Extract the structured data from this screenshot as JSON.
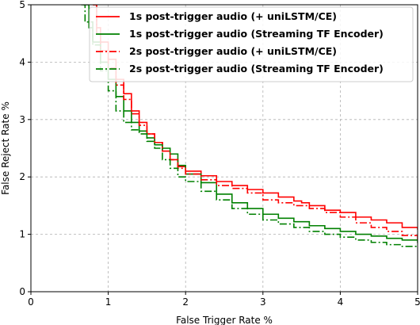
{
  "chart_data": {
    "type": "line",
    "title": "",
    "xlabel": "False Trigger Rate %",
    "ylabel": "False Reject Rate %",
    "xlim": [
      0,
      5
    ],
    "ylim": [
      0,
      5
    ],
    "xticks": [
      "0",
      "1",
      "2",
      "3",
      "4",
      "5"
    ],
    "yticks": [
      "0",
      "1",
      "2",
      "3",
      "4",
      "5"
    ],
    "grid": true,
    "legend_position": "top-right",
    "series": [
      {
        "name": "1s post-trigger audio (+ uniLSTM/CE)",
        "color": "#ff0000",
        "linestyle": "solid",
        "points": [
          [
            0.8,
            5.0
          ],
          [
            0.85,
            4.6
          ],
          [
            0.9,
            4.35
          ],
          [
            1.0,
            4.05
          ],
          [
            1.1,
            3.7
          ],
          [
            1.2,
            3.45
          ],
          [
            1.3,
            3.15
          ],
          [
            1.4,
            2.95
          ],
          [
            1.5,
            2.75
          ],
          [
            1.6,
            2.6
          ],
          [
            1.7,
            2.45
          ],
          [
            1.8,
            2.3
          ],
          [
            1.9,
            2.18
          ],
          [
            2.0,
            2.1
          ],
          [
            2.2,
            2.02
          ],
          [
            2.4,
            1.92
          ],
          [
            2.6,
            1.85
          ],
          [
            2.8,
            1.78
          ],
          [
            3.0,
            1.72
          ],
          [
            3.2,
            1.65
          ],
          [
            3.4,
            1.58
          ],
          [
            3.5,
            1.55
          ],
          [
            3.6,
            1.5
          ],
          [
            3.8,
            1.42
          ],
          [
            4.0,
            1.38
          ],
          [
            4.2,
            1.3
          ],
          [
            4.4,
            1.25
          ],
          [
            4.6,
            1.2
          ],
          [
            4.8,
            1.12
          ],
          [
            5.0,
            1.08
          ]
        ]
      },
      {
        "name": "1s post-trigger audio (Streaming TF Encoder)",
        "color": "#008000",
        "linestyle": "solid",
        "points": [
          [
            0.68,
            5.0
          ],
          [
            0.75,
            4.6
          ],
          [
            0.8,
            4.35
          ],
          [
            0.9,
            4.0
          ],
          [
            1.0,
            3.7
          ],
          [
            1.1,
            3.4
          ],
          [
            1.2,
            3.15
          ],
          [
            1.3,
            2.95
          ],
          [
            1.4,
            2.8
          ],
          [
            1.5,
            2.68
          ],
          [
            1.6,
            2.56
          ],
          [
            1.7,
            2.5
          ],
          [
            1.8,
            2.4
          ],
          [
            1.9,
            2.2
          ],
          [
            2.0,
            2.05
          ],
          [
            2.2,
            1.9
          ],
          [
            2.4,
            1.7
          ],
          [
            2.6,
            1.55
          ],
          [
            2.8,
            1.45
          ],
          [
            3.0,
            1.35
          ],
          [
            3.2,
            1.28
          ],
          [
            3.4,
            1.22
          ],
          [
            3.6,
            1.15
          ],
          [
            3.8,
            1.1
          ],
          [
            4.0,
            1.05
          ],
          [
            4.2,
            1.0
          ],
          [
            4.4,
            0.97
          ],
          [
            4.6,
            0.93
          ],
          [
            4.8,
            0.9
          ],
          [
            5.0,
            0.85
          ]
        ]
      },
      {
        "name": "2s post-trigger audio (+ uniLSTM/CE)",
        "color": "#ff0000",
        "linestyle": "dashdot",
        "points": [
          [
            0.8,
            5.0
          ],
          [
            0.85,
            4.5
          ],
          [
            0.9,
            4.2
          ],
          [
            1.0,
            3.9
          ],
          [
            1.1,
            3.6
          ],
          [
            1.2,
            3.35
          ],
          [
            1.3,
            3.1
          ],
          [
            1.4,
            2.9
          ],
          [
            1.5,
            2.75
          ],
          [
            1.6,
            2.6
          ],
          [
            1.7,
            2.45
          ],
          [
            1.8,
            2.3
          ],
          [
            1.9,
            2.15
          ],
          [
            2.0,
            2.05
          ],
          [
            2.2,
            1.95
          ],
          [
            2.4,
            1.85
          ],
          [
            2.6,
            1.8
          ],
          [
            2.8,
            1.72
          ],
          [
            3.0,
            1.6
          ],
          [
            3.2,
            1.55
          ],
          [
            3.4,
            1.5
          ],
          [
            3.6,
            1.45
          ],
          [
            3.8,
            1.38
          ],
          [
            4.0,
            1.3
          ],
          [
            4.2,
            1.2
          ],
          [
            4.4,
            1.12
          ],
          [
            4.6,
            1.05
          ],
          [
            4.8,
            0.98
          ],
          [
            5.0,
            0.9
          ]
        ]
      },
      {
        "name": "2s post-trigger audio (Streaming TF Encoder)",
        "color": "#008000",
        "linestyle": "dashdot",
        "points": [
          [
            0.65,
            5.0
          ],
          [
            0.7,
            4.7
          ],
          [
            0.8,
            4.3
          ],
          [
            0.9,
            3.85
          ],
          [
            1.0,
            3.5
          ],
          [
            1.1,
            3.15
          ],
          [
            1.2,
            2.95
          ],
          [
            1.3,
            2.82
          ],
          [
            1.4,
            2.75
          ],
          [
            1.5,
            2.62
          ],
          [
            1.6,
            2.5
          ],
          [
            1.7,
            2.3
          ],
          [
            1.8,
            2.15
          ],
          [
            1.9,
            2.0
          ],
          [
            2.0,
            1.92
          ],
          [
            2.2,
            1.75
          ],
          [
            2.4,
            1.6
          ],
          [
            2.6,
            1.45
          ],
          [
            2.8,
            1.35
          ],
          [
            3.0,
            1.25
          ],
          [
            3.2,
            1.18
          ],
          [
            3.4,
            1.12
          ],
          [
            3.6,
            1.05
          ],
          [
            3.8,
            1.0
          ],
          [
            4.0,
            0.95
          ],
          [
            4.2,
            0.9
          ],
          [
            4.4,
            0.86
          ],
          [
            4.6,
            0.82
          ],
          [
            4.8,
            0.79
          ],
          [
            5.0,
            0.77
          ]
        ]
      }
    ]
  }
}
